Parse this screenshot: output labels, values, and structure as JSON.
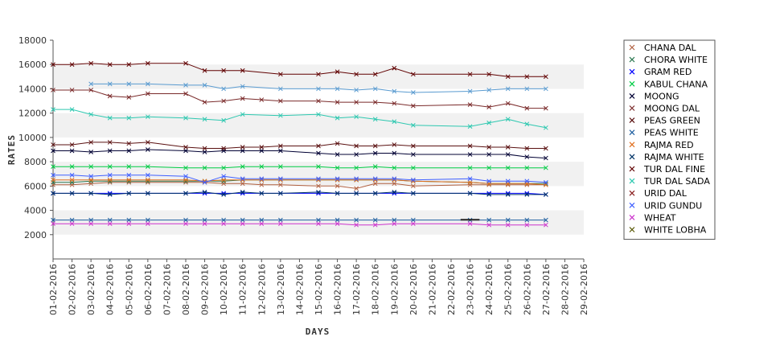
{
  "chart_data": {
    "type": "line",
    "xlabel": "DAYS",
    "ylabel": "RATES",
    "ylim": [
      0,
      18000
    ],
    "yticks": [
      2000,
      4000,
      6000,
      8000,
      10000,
      12000,
      14000,
      16000,
      18000
    ],
    "grid": "alternating horizontal bands",
    "legend_position": "right",
    "categories": [
      "01-02-2016",
      "02-02-2016",
      "03-02-2016",
      "04-02-2016",
      "05-02-2016",
      "06-02-2016",
      "07-02-2016",
      "08-02-2016",
      "09-02-2016",
      "10-02-2016",
      "11-02-2016",
      "12-02-2016",
      "13-02-2016",
      "14-02-2016",
      "15-02-2016",
      "16-02-2016",
      "17-02-2016",
      "18-02-2016",
      "19-02-2016",
      "20-02-2016",
      "21-02-2016",
      "22-02-2016",
      "23-02-2016",
      "24-02-2016",
      "25-02-2016",
      "26-02-2016",
      "27-02-2016",
      "28-02-2016",
      "29-02-2016"
    ],
    "series": [
      {
        "name": "CHANA DAL",
        "color": "#b06040",
        "values": [
          6100,
          6100,
          6200,
          6300,
          6300,
          6300,
          null,
          6300,
          6300,
          6200,
          6200,
          6100,
          6100,
          null,
          6000,
          6000,
          5800,
          6200,
          6200,
          6000,
          null,
          null,
          6100,
          6100,
          6100,
          6100,
          6100,
          null,
          null
        ]
      },
      {
        "name": "CHORA WHITE",
        "color": "#2e7a52",
        "values": [
          6300,
          6300,
          6400,
          6400,
          6400,
          6400,
          null,
          6400,
          6400,
          6400,
          6500,
          6500,
          6500,
          null,
          6500,
          6500,
          6500,
          6500,
          6500,
          6400,
          null,
          null,
          6300,
          6200,
          6200,
          6200,
          6200,
          null,
          null
        ]
      },
      {
        "name": "GRAM RED",
        "color": "#0000ff",
        "values": [
          5400,
          5400,
          5400,
          5400,
          5400,
          5400,
          null,
          5400,
          5400,
          5400,
          5400,
          5400,
          5400,
          null,
          5400,
          5400,
          5400,
          5400,
          5400,
          5400,
          null,
          null,
          5400,
          5400,
          5400,
          5400,
          5300,
          null,
          null
        ]
      },
      {
        "name": "KABUL CHANA",
        "color": "#00cc44",
        "values": [
          7600,
          7600,
          7600,
          7600,
          7600,
          7600,
          null,
          7500,
          7500,
          7500,
          7600,
          7600,
          7600,
          null,
          7600,
          7500,
          7500,
          7600,
          7500,
          7500,
          null,
          null,
          7500,
          7500,
          7500,
          7500,
          7500,
          null,
          null
        ]
      },
      {
        "name": "MOONG",
        "color": "#000033",
        "values": [
          8900,
          8900,
          8800,
          8900,
          8900,
          9000,
          null,
          8900,
          8800,
          8900,
          8900,
          8900,
          8900,
          null,
          8700,
          8600,
          8600,
          8700,
          8700,
          8600,
          null,
          null,
          8600,
          8600,
          8600,
          8400,
          8300,
          null,
          null
        ]
      },
      {
        "name": "MOONG DAL",
        "color": "#7a2a2a",
        "values": [
          13900,
          13900,
          13900,
          13400,
          13300,
          13600,
          null,
          13600,
          12900,
          13000,
          13200,
          13100,
          13000,
          null,
          13000,
          12900,
          12900,
          12900,
          12800,
          12600,
          null,
          null,
          12700,
          12500,
          12800,
          12400,
          12400,
          null,
          null
        ]
      },
      {
        "name": "PEAS GREEN",
        "color": "#5a1010",
        "values": [
          9400,
          9400,
          9600,
          9600,
          9500,
          9600,
          null,
          9200,
          9100,
          9100,
          9200,
          9200,
          9300,
          null,
          9300,
          9500,
          9300,
          9300,
          9400,
          9300,
          null,
          null,
          9300,
          9200,
          9200,
          9100,
          9100,
          null,
          null
        ]
      },
      {
        "name": "PEAS WHITE",
        "color": "#2060a0",
        "values": [
          3200,
          3200,
          3200,
          3200,
          3200,
          3200,
          null,
          3200,
          3200,
          3200,
          3200,
          3200,
          3200,
          null,
          3200,
          3200,
          3200,
          3200,
          3200,
          3200,
          null,
          null,
          3200,
          3200,
          3200,
          3200,
          3200,
          null,
          null
        ]
      },
      {
        "name": "RAJMA RED",
        "color": "#e07020",
        "values": [
          6500,
          6500,
          6500,
          6500,
          6500,
          6500,
          null,
          6500,
          6400,
          6500,
          6500,
          6500,
          6500,
          null,
          6500,
          6500,
          6500,
          6500,
          6500,
          6400,
          null,
          null,
          6300,
          6200,
          6200,
          6200,
          6100,
          null,
          null
        ]
      },
      {
        "name": "RAJMA WHITE",
        "color": "#003366",
        "values": [
          5400,
          5400,
          5400,
          5300,
          5400,
          5400,
          null,
          5400,
          5500,
          5300,
          5500,
          5400,
          5400,
          null,
          5500,
          5400,
          5400,
          5400,
          5500,
          5400,
          null,
          null,
          5400,
          5300,
          5300,
          5300,
          5300,
          null,
          null
        ]
      },
      {
        "name": "TUR DAL FINE",
        "color": "#600000",
        "values": [
          16000,
          16000,
          16100,
          16000,
          16000,
          16100,
          null,
          16100,
          15500,
          15500,
          15500,
          null,
          15200,
          null,
          15200,
          15400,
          15200,
          15200,
          15700,
          15200,
          null,
          null,
          15200,
          15200,
          15000,
          15000,
          15000,
          null,
          null
        ]
      },
      {
        "name": "TUR DAL SADA",
        "color": "#2ec8b0",
        "values": [
          12300,
          12300,
          11900,
          11600,
          11600,
          11700,
          null,
          11600,
          11500,
          11400,
          11900,
          null,
          11800,
          null,
          11900,
          11600,
          11700,
          11500,
          11300,
          11000,
          null,
          null,
          10900,
          11200,
          11500,
          11100,
          10800,
          null,
          null
        ]
      },
      {
        "name": "URID DAL",
        "color": "#8a2020",
        "values": [
          null,
          null,
          null,
          null,
          null,
          null,
          null,
          null,
          null,
          null,
          null,
          null,
          null,
          null,
          null,
          null,
          null,
          null,
          null,
          null,
          null,
          null,
          null,
          null,
          null,
          null,
          null,
          null,
          null
        ]
      },
      {
        "name": "URID GUNDU",
        "color": "#4060ff",
        "values": [
          6900,
          6900,
          6800,
          6900,
          6900,
          6900,
          null,
          6800,
          6300,
          6800,
          6600,
          6600,
          6600,
          null,
          6600,
          6600,
          6600,
          6600,
          6600,
          6500,
          null,
          null,
          6600,
          6400,
          6400,
          6400,
          6300,
          null,
          null
        ]
      },
      {
        "name": "WHEAT",
        "color": "#cc33cc",
        "values": [
          2900,
          2900,
          2900,
          2900,
          2900,
          2900,
          null,
          2900,
          2900,
          2900,
          2900,
          2900,
          2900,
          null,
          2900,
          2900,
          2800,
          2800,
          2900,
          2900,
          null,
          null,
          2900,
          2800,
          2800,
          2800,
          2800,
          null,
          null
        ]
      },
      {
        "name": "WHITE LOBHA",
        "color": "#555500",
        "values": [
          null,
          null,
          null,
          null,
          null,
          null,
          null,
          null,
          null,
          null,
          null,
          null,
          null,
          null,
          null,
          null,
          null,
          null,
          null,
          null,
          null,
          null,
          null,
          null,
          null,
          null,
          null,
          null,
          null
        ]
      },
      {
        "name": "",
        "color": "#5a9bd0",
        "values": [
          null,
          null,
          14400,
          14400,
          14400,
          14400,
          null,
          14300,
          14300,
          14000,
          14200,
          null,
          14000,
          null,
          14000,
          14000,
          13900,
          14000,
          13800,
          13700,
          null,
          null,
          13800,
          13900,
          14000,
          14000,
          14000,
          null,
          null
        ]
      }
    ]
  }
}
